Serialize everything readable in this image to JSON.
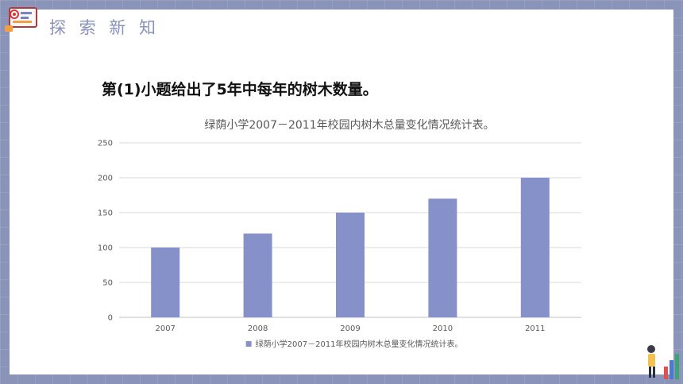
{
  "section_title": "探 索 新 知",
  "question_text": "第(1)小题给出了5年中每年的树木数量。",
  "colors": {
    "background": "#8a94b8",
    "accent": "#8a92bd",
    "bar": "#8591c8",
    "gridline": "#d9d9d9"
  },
  "chart_data": {
    "type": "bar",
    "title": "绿荫小学2007－2011年校园内树木总量变化情况统计表。",
    "categories": [
      "2007",
      "2008",
      "2009",
      "2010",
      "2011"
    ],
    "series": [
      {
        "name": "绿荫小学2007－2011年校园内树木总量变化情况统计表。",
        "values": [
          100,
          120,
          150,
          170,
          200
        ]
      }
    ],
    "yticks": [
      "0",
      "50",
      "100",
      "150",
      "200",
      "250"
    ],
    "ylim": [
      0,
      250
    ],
    "grid": true,
    "legend": "bottom"
  }
}
